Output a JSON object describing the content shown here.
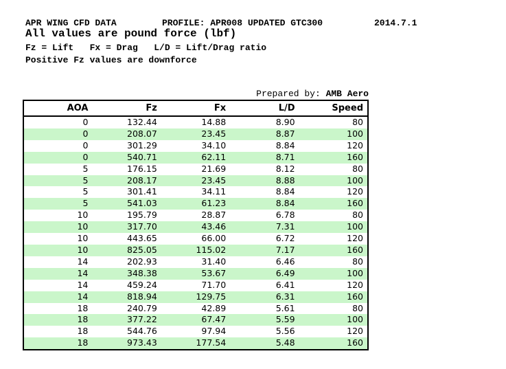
{
  "header": {
    "title": "APR WING CFD DATA",
    "profile": "PROFILE: APR008 UPDATED GTC300",
    "date": "2014.7.1",
    "subtitle": "All values are pound force (lbf)",
    "legend": "Fz = Lift   Fx = Drag   L/D = Lift/Drag ratio",
    "note": "Positive Fz values are downforce"
  },
  "prepared_by": {
    "label": "Prepared by: ",
    "value": "AMB Aero"
  },
  "table": {
    "columns": [
      "AOA",
      "Fz",
      "Fx",
      "L/D",
      "Speed"
    ],
    "rows": [
      [
        0,
        "132.44",
        "14.88",
        "8.90",
        80
      ],
      [
        0,
        "208.07",
        "23.45",
        "8.87",
        100
      ],
      [
        0,
        "301.29",
        "34.10",
        "8.84",
        120
      ],
      [
        0,
        "540.71",
        "62.11",
        "8.71",
        160
      ],
      [
        5,
        "176.15",
        "21.69",
        "8.12",
        80
      ],
      [
        5,
        "208.17",
        "23.45",
        "8.88",
        100
      ],
      [
        5,
        "301.41",
        "34.11",
        "8.84",
        120
      ],
      [
        5,
        "541.03",
        "61.23",
        "8.84",
        160
      ],
      [
        10,
        "195.79",
        "28.87",
        "6.78",
        80
      ],
      [
        10,
        "317.70",
        "43.46",
        "7.31",
        100
      ],
      [
        10,
        "443.65",
        "66.00",
        "6.72",
        120
      ],
      [
        10,
        "825.05",
        "115.02",
        "7.17",
        160
      ],
      [
        14,
        "202.93",
        "31.40",
        "6.46",
        80
      ],
      [
        14,
        "348.38",
        "53.67",
        "6.49",
        100
      ],
      [
        14,
        "459.24",
        "71.70",
        "6.41",
        120
      ],
      [
        14,
        "818.94",
        "129.75",
        "6.31",
        160
      ],
      [
        18,
        "240.79",
        "42.89",
        "5.61",
        80
      ],
      [
        18,
        "377.22",
        "67.47",
        "5.59",
        100
      ],
      [
        18,
        "544.76",
        "97.94",
        "5.56",
        120
      ],
      [
        18,
        "973.43",
        "177.54",
        "5.48",
        160
      ]
    ]
  },
  "colors": {
    "row_alternate_green": "#caf6ca",
    "table_border": "#000000",
    "text": "#000000",
    "page_background": "#ffffff"
  }
}
